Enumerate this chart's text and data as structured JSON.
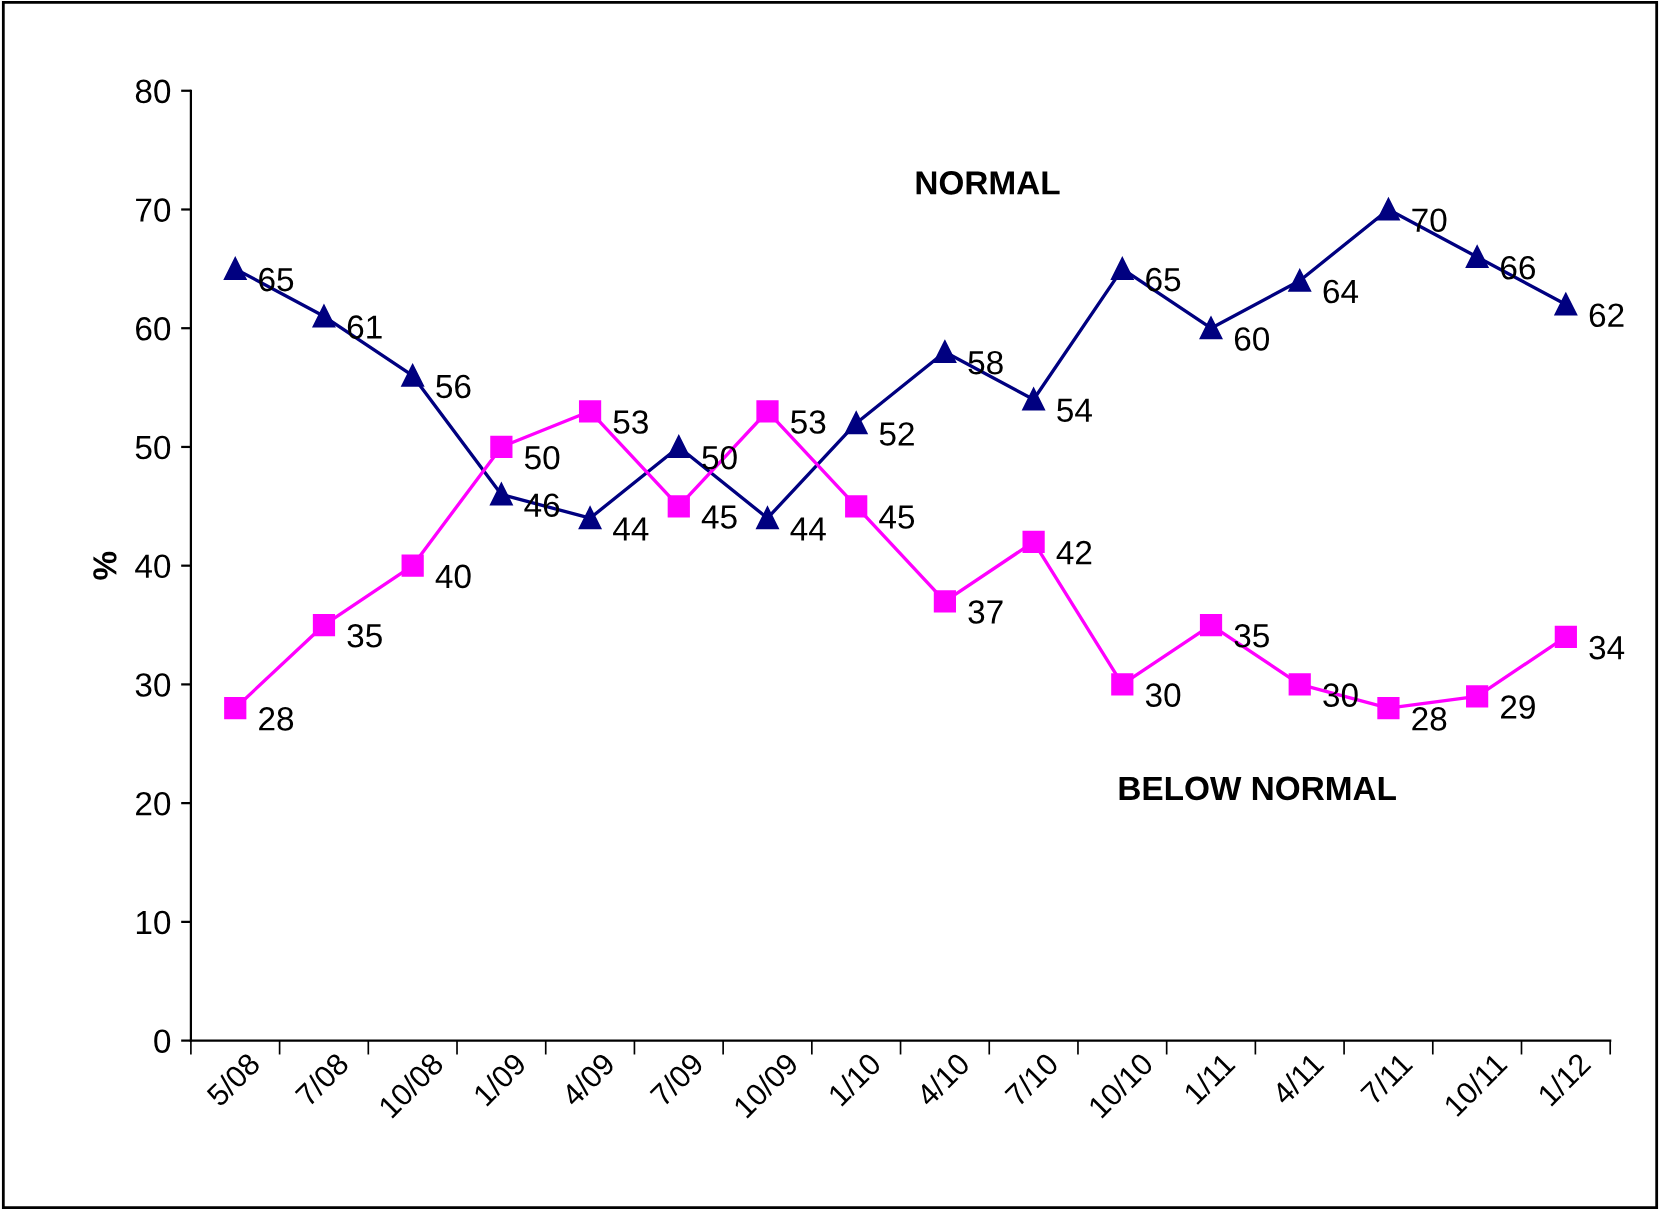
{
  "chart_data": {
    "type": "line",
    "ylabel": "%",
    "categories": [
      "5/08",
      "7/08",
      "10/08",
      "1/09",
      "4/09",
      "7/09",
      "10/09",
      "1/10",
      "4/10",
      "7/10",
      "10/10",
      "1/11",
      "4/11",
      "7/11",
      "10/11",
      "1/12"
    ],
    "series": [
      {
        "name": "NORMAL",
        "color": "#000080",
        "marker": "triangle",
        "values": [
          65,
          61,
          56,
          46,
          44,
          50,
          44,
          52,
          58,
          54,
          65,
          60,
          64,
          70,
          66,
          62
        ]
      },
      {
        "name": "BELOW NORMAL",
        "color": "#ff00ff",
        "marker": "square",
        "values": [
          28,
          35,
          40,
          50,
          53,
          45,
          53,
          45,
          37,
          42,
          30,
          35,
          30,
          28,
          29,
          34
        ]
      }
    ],
    "ylim": [
      0,
      80
    ],
    "yticks": [
      0,
      10,
      20,
      30,
      40,
      50,
      60,
      70,
      80
    ],
    "grid": false,
    "legend": false,
    "data_labels": true,
    "line_style": "solid"
  }
}
